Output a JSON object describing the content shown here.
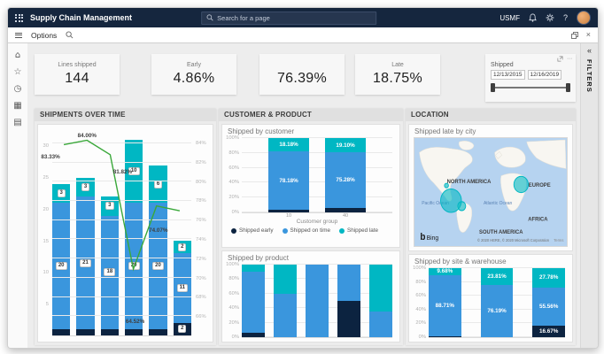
{
  "app": {
    "title": "Supply Chain Management",
    "search_placeholder": "Search for a page",
    "company": "USMF",
    "help_label": "?"
  },
  "action_bar": {
    "options_label": "Options"
  },
  "filters_panel": {
    "label": "FILTERS"
  },
  "kpis": [
    {
      "label": "Lines shipped",
      "value": "144"
    },
    {
      "label": "Early",
      "value": "4.86%"
    },
    {
      "label": "",
      "value": "76.39%"
    },
    {
      "label": "Late",
      "value": "18.75%"
    }
  ],
  "date_filter": {
    "label": "Shipped",
    "start_date": "12/13/2015",
    "end_date": "12/16/2019"
  },
  "panels": {
    "shipments": "SHIPMENTS OVER TIME",
    "customer_product": "CUSTOMER & PRODUCT",
    "location": "LOCATION"
  },
  "colors": {
    "early": "#0c2340",
    "on_time": "#3a96dd",
    "late": "#00b7c3",
    "line": "#3aa83a",
    "navbar": "#15263e"
  },
  "chart_data": [
    {
      "id": "shipments-over-time",
      "type": "bar+line",
      "title": "SHIPMENTS OVER TIME",
      "categories": [
        "",
        "",
        "",
        "",
        "",
        ""
      ],
      "series": [
        {
          "key": "early",
          "name": "Shipped early",
          "values": [
            1,
            1,
            1,
            1,
            1,
            2
          ],
          "labels": [
            null,
            null,
            null,
            null,
            null,
            "2"
          ]
        },
        {
          "key": "on_time",
          "name": "Shipped on time",
          "values": [
            20,
            21,
            18,
            20,
            20,
            11
          ],
          "labels": [
            "20",
            "21",
            "18",
            "20",
            "20",
            "11"
          ]
        },
        {
          "key": "late",
          "name": "Shipped late",
          "values": [
            3,
            3,
            3,
            10,
            6,
            2
          ],
          "labels": [
            "3",
            "3",
            "3",
            "10",
            "6",
            "2"
          ]
        }
      ],
      "line": {
        "values": [
          83.33,
          84.0,
          81.82,
          64.52,
          74.07,
          73.33
        ],
        "labels": [
          "83.33%",
          "84.00%",
          "81.82%",
          "64.52%",
          "74.07%",
          null
        ]
      },
      "left_axis": {
        "min": 0,
        "max": 32,
        "ticks": [
          5,
          10,
          15,
          20,
          25,
          30
        ]
      },
      "right_axis": {
        "min": 64,
        "max": 85,
        "ticks": [
          66,
          68,
          70,
          72,
          74,
          76,
          78,
          80,
          82,
          84
        ]
      }
    },
    {
      "id": "shipped-by-customer",
      "type": "stacked-bar-100",
      "title": "Shipped by customer",
      "xlabel": "Customer group",
      "categories": [
        "10",
        "40"
      ],
      "yticks": [
        "0%",
        "20%",
        "40%",
        "60%",
        "80%",
        "100%"
      ],
      "legend": [
        "Shipped early",
        "Shipped on time",
        "Shipped late"
      ],
      "series": [
        {
          "key": "early",
          "name": "Shipped early",
          "values": [
            3.64,
            5.62
          ],
          "labels": [
            null,
            null
          ]
        },
        {
          "key": "on_time",
          "name": "Shipped on time",
          "values": [
            78.18,
            75.28
          ],
          "labels": [
            "78.18%",
            "75.28%"
          ]
        },
        {
          "key": "late",
          "name": "Shipped late",
          "values": [
            18.18,
            19.1
          ],
          "labels": [
            "18.18%",
            "19.10%"
          ]
        }
      ]
    },
    {
      "id": "shipped-by-product",
      "type": "stacked-bar-100",
      "title": "Shipped by product",
      "categories": [
        "",
        "",
        "",
        "",
        ""
      ],
      "yticks": [
        "0%",
        "20%",
        "40%",
        "60%",
        "80%",
        "100%"
      ],
      "series": [
        {
          "key": "early",
          "name": "Shipped early",
          "values": [
            6,
            0,
            0,
            50,
            0
          ]
        },
        {
          "key": "on_time",
          "name": "Shipped on time",
          "values": [
            84,
            60,
            100,
            50,
            35
          ]
        },
        {
          "key": "late",
          "name": "Shipped late",
          "values": [
            10,
            40,
            0,
            0,
            65
          ]
        }
      ]
    },
    {
      "id": "shipped-by-site-warehouse",
      "type": "stacked-bar-100",
      "title": "Shipped by site & warehouse",
      "categories": [
        "",
        "",
        ""
      ],
      "yticks": [
        "0%",
        "20%",
        "40%",
        "60%",
        "80%",
        "100%"
      ],
      "series": [
        {
          "key": "early",
          "name": "Shipped early",
          "values": [
            1.61,
            0,
            16.67
          ],
          "labels": [
            null,
            null,
            "16.67%"
          ]
        },
        {
          "key": "on_time",
          "name": "Shipped on time",
          "values": [
            88.71,
            76.19,
            55.56
          ],
          "labels": [
            "88.71%",
            "76.19%",
            "55.56%"
          ]
        },
        {
          "key": "late",
          "name": "Shipped late",
          "values": [
            9.68,
            23.81,
            27.78
          ],
          "labels": [
            "9.68%",
            "23.81%",
            "27.78%"
          ]
        }
      ]
    }
  ],
  "map": {
    "title": "Shipped late by city",
    "provider": "Bing",
    "attribution": "© 2020 HERE, © 2020 Microsoft Corporation",
    "terms_label": "Terms",
    "labels": {
      "north_america": "NORTH AMERICA",
      "south_america": "SOUTH AMERICA",
      "europe": "EUROPE",
      "africa": "AFRICA",
      "pacific": "Pacific Ocean",
      "atlantic": "Atlantic Ocean"
    },
    "bubbles": [
      {
        "x": 24,
        "y": 58,
        "r": 13
      },
      {
        "x": 31,
        "y": 63,
        "r": 5
      },
      {
        "x": 21,
        "y": 44,
        "r": 2.5
      },
      {
        "x": 70,
        "y": 43,
        "r": 9
      }
    ]
  }
}
